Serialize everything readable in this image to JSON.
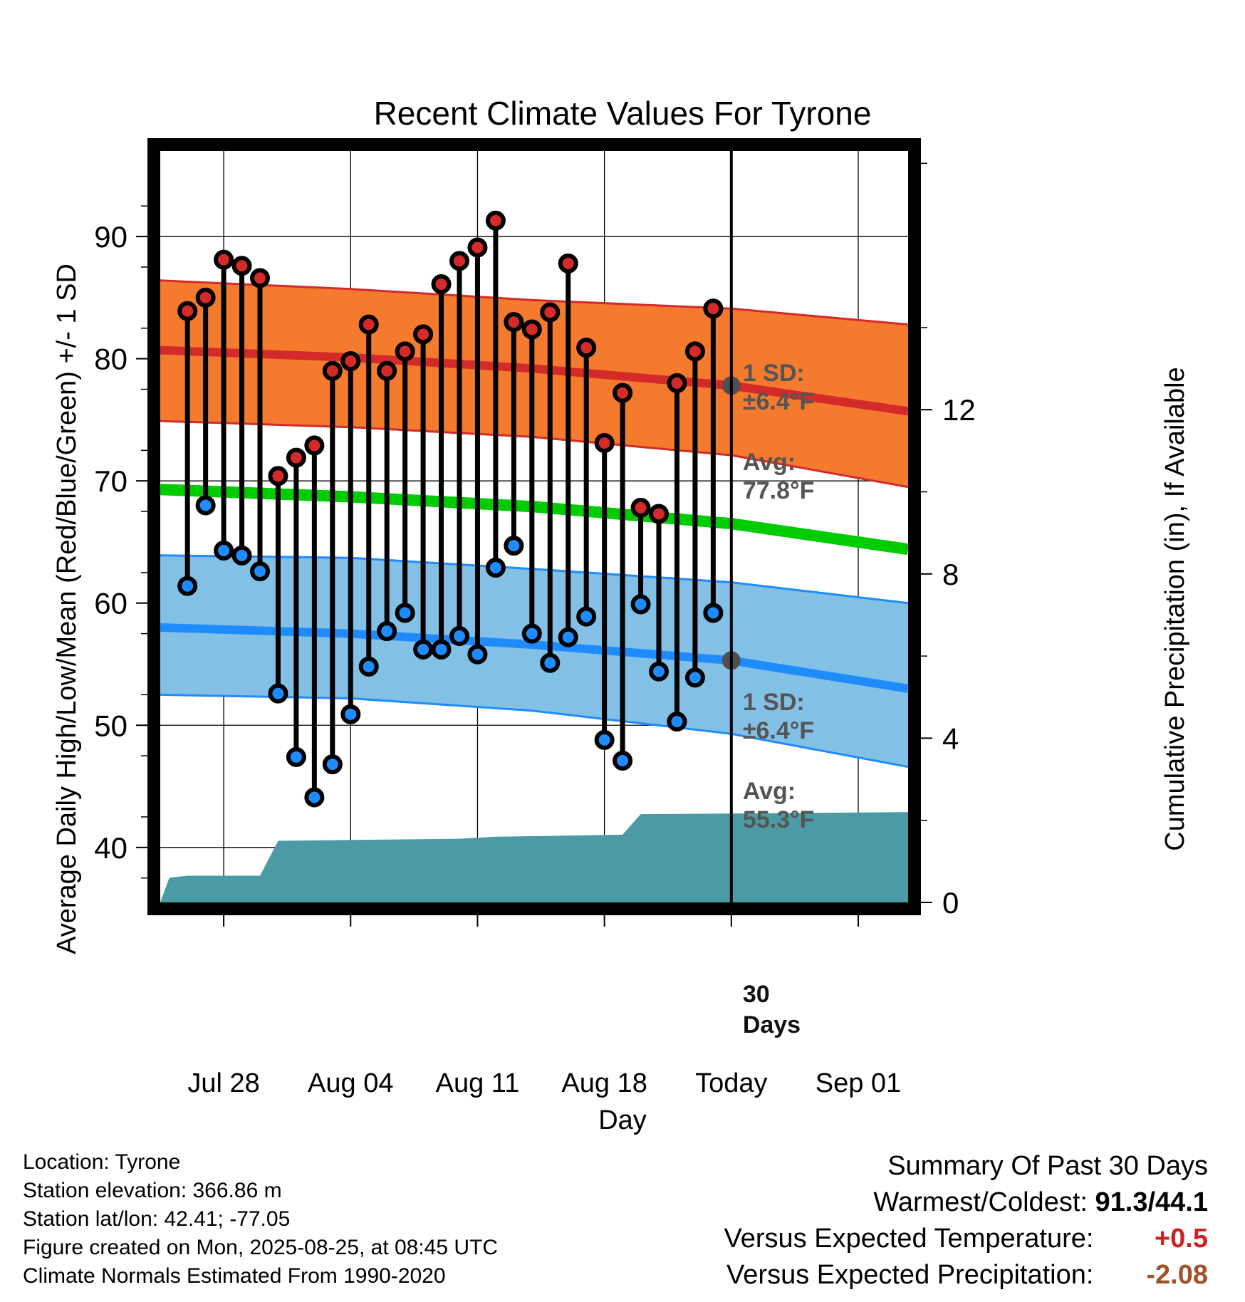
{
  "chart_data": {
    "type": "line",
    "title": "Recent Climate Values For Tyrone",
    "xlabel": "Day",
    "ylabel": "Average Daily High/Low/Mean (Red/Blue/Green) +/- 1 SD",
    "y2label": "Cumulative Precipitation (in), If Available",
    "ylim": [
      35.5,
      97
    ],
    "y2lim": [
      0,
      18.3
    ],
    "yticks": [
      40,
      50,
      60,
      70,
      80,
      90
    ],
    "y2ticks": [
      0,
      4,
      8,
      12
    ],
    "x_tick_labels": [
      "Jul 28",
      "Aug 04",
      "Aug 11",
      "Aug 18",
      "Today",
      "Sep 01"
    ],
    "x_tick_dates": [
      "2025-07-28",
      "2025-08-04",
      "2025-08-11",
      "2025-08-18",
      "2025-08-25",
      "2025-09-01"
    ],
    "xlim": [
      "2025-07-24T12:00",
      "2025-09-03T18:00"
    ],
    "grid": true,
    "daily_dates": [
      "2025-07-26",
      "2025-07-27",
      "2025-07-28",
      "2025-07-29",
      "2025-07-30",
      "2025-07-31",
      "2025-08-01",
      "2025-08-02",
      "2025-08-03",
      "2025-08-04",
      "2025-08-05",
      "2025-08-06",
      "2025-08-07",
      "2025-08-08",
      "2025-08-09",
      "2025-08-10",
      "2025-08-11",
      "2025-08-12",
      "2025-08-13",
      "2025-08-14",
      "2025-08-15",
      "2025-08-16",
      "2025-08-17",
      "2025-08-18",
      "2025-08-19",
      "2025-08-20",
      "2025-08-21",
      "2025-08-22",
      "2025-08-23",
      "2025-08-24"
    ],
    "daily_high": [
      83.9,
      85.0,
      88.1,
      87.6,
      86.6,
      70.4,
      71.9,
      72.9,
      79.0,
      79.8,
      82.8,
      79.0,
      80.6,
      82.0,
      86.1,
      88.0,
      89.1,
      91.3,
      83.0,
      82.4,
      83.8,
      87.8,
      80.9,
      73.1,
      77.2,
      67.8,
      67.3,
      78.0,
      80.6,
      84.1
    ],
    "daily_low": [
      61.4,
      68.0,
      64.3,
      63.9,
      62.6,
      52.6,
      47.4,
      44.1,
      46.8,
      50.9,
      54.8,
      57.7,
      59.2,
      56.2,
      56.2,
      57.3,
      55.8,
      62.9,
      64.7,
      57.5,
      55.1,
      57.2,
      58.9,
      48.8,
      47.1,
      59.9,
      54.4,
      50.3,
      53.9,
      59.2
    ],
    "normal_high": {
      "dates": [
        "2025-07-24T12:00",
        "2025-08-04",
        "2025-08-14",
        "2025-08-25",
        "2025-09-03T18:00"
      ],
      "mean": [
        80.7,
        80.1,
        79.2,
        77.8,
        75.7
      ],
      "upper": [
        86.4,
        85.7,
        84.8,
        84.1,
        82.8
      ],
      "lower": [
        74.9,
        74.4,
        73.6,
        72.1,
        69.5
      ]
    },
    "normal_low": {
      "dates": [
        "2025-07-24T12:00",
        "2025-08-04",
        "2025-08-14",
        "2025-08-25",
        "2025-09-03T18:00"
      ],
      "mean": [
        58.0,
        57.5,
        56.6,
        55.3,
        53.0
      ],
      "upper": [
        63.9,
        63.7,
        62.8,
        61.7,
        60.0
      ],
      "lower": [
        52.5,
        52.2,
        51.2,
        49.3,
        46.6
      ]
    },
    "normal_mean": {
      "dates": [
        "2025-07-24T12:00",
        "2025-08-04",
        "2025-08-14",
        "2025-08-25",
        "2025-09-03T18:00"
      ],
      "values": [
        69.3,
        68.7,
        67.9,
        66.5,
        64.4
      ]
    },
    "precipitation": {
      "dates": [
        "2025-07-24T12:00",
        "2025-07-25",
        "2025-07-26",
        "2025-07-30",
        "2025-07-31",
        "2025-08-10",
        "2025-08-12",
        "2025-08-19",
        "2025-08-20",
        "2025-09-03T18:00"
      ],
      "cumulative": [
        0,
        0.6,
        0.65,
        0.65,
        1.5,
        1.55,
        1.6,
        1.65,
        2.15,
        2.2
      ]
    },
    "series": [
      {
        "name": "Daily High",
        "color": "#c82828"
      },
      {
        "name": "Daily Low",
        "color": "#1e8cff"
      },
      {
        "name": "Mean",
        "color": "#00cc00"
      },
      {
        "name": "Precipitation",
        "color": "#4a9ba5"
      }
    ]
  },
  "annotations": {
    "high_sd_label": "1 SD:",
    "high_sd_value": "±6.4°F",
    "high_avg_label": "Avg:",
    "high_avg_value": "77.8°F",
    "low_sd_label": "1 SD:",
    "low_sd_value": "±6.4°F",
    "low_avg_label": "Avg:",
    "low_avg_value": "55.3°F",
    "precip_label_1": "30",
    "precip_label_2": "Days"
  },
  "colors": {
    "high_band": "#f47a2e",
    "high_line": "#d42a2a",
    "low_band": "#82c0e6",
    "low_line": "#1e8cff",
    "mean_line": "#00cc00",
    "precip_fill": "#4a9ba5",
    "avg_marker": "#505050",
    "positive": "#cc2222",
    "precip_diff": "#a0522d"
  },
  "footer": {
    "location": "Location: Tyrone",
    "elevation": "Station elevation: 366.86 m",
    "latlon": "Station lat/lon: 42.41; -77.05",
    "created": "Figure created on Mon, 2025-08-25, at 08:45 UTC",
    "normals": "Climate Normals Estimated From 1990-2020"
  },
  "summary": {
    "title": "Summary Of Past 30 Days",
    "warmest_label": "Warmest/Coldest:",
    "warmest_value": "91.3/44.1",
    "temp_label": "Versus Expected Temperature:",
    "temp_value": "+0.5",
    "precip_label": "Versus Expected Precipitation:",
    "precip_value": "-2.08"
  }
}
